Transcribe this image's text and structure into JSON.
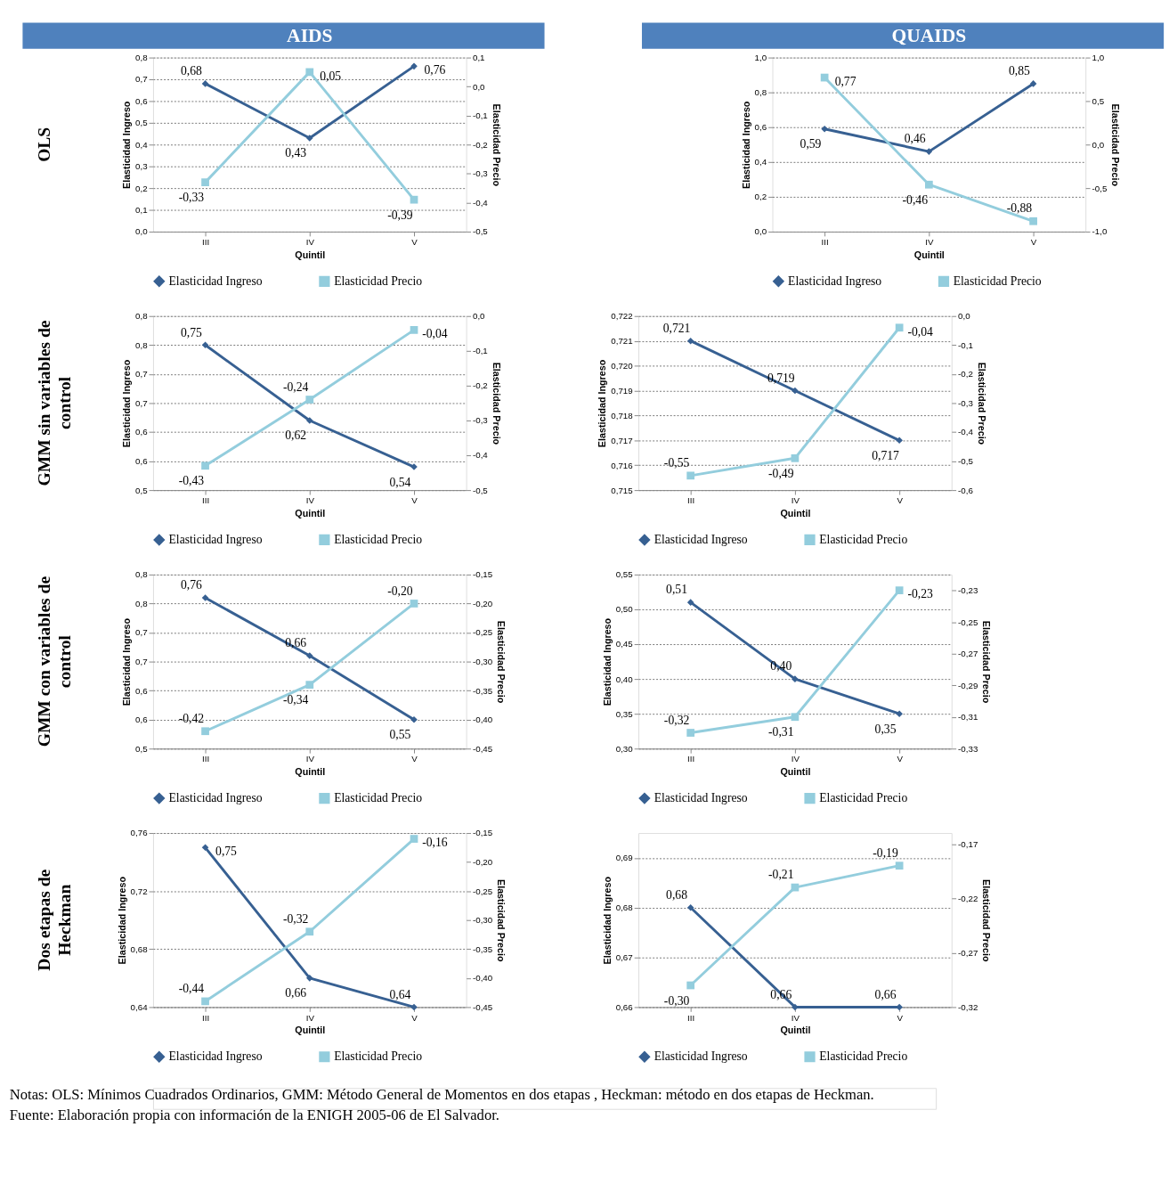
{
  "chart_data": [
    {
      "type": "line",
      "title": "AIDS",
      "annotations": [
        "OLS"
      ],
      "categories": [
        "III",
        "IV",
        "V"
      ],
      "xlabel": "Quintil",
      "ylabel": "Elasticidad Ingreso",
      "y2label": "Elasticidad Precio",
      "grid": "y",
      "legend": "bottom",
      "ylim": [
        0,
        0.8
      ],
      "yticks": [
        {
          "value": 0,
          "label": "0,0"
        },
        {
          "value": 0.1,
          "label": "0,1"
        },
        {
          "value": 0.2,
          "label": "0,2"
        },
        {
          "value": 0.3,
          "label": "0,3"
        },
        {
          "value": 0.4,
          "label": "0,4"
        },
        {
          "value": 0.5,
          "label": "0,5"
        },
        {
          "value": 0.6,
          "label": "0,6"
        },
        {
          "value": 0.7,
          "label": "0,7"
        },
        {
          "value": 0.8,
          "label": "0,8"
        }
      ],
      "y2lim": [
        -0.5,
        0.1
      ],
      "y2ticks": [
        {
          "value": -0.5,
          "label": "-0,5"
        },
        {
          "value": -0.4,
          "label": "-0,4"
        },
        {
          "value": -0.3,
          "label": "-0,3"
        },
        {
          "value": -0.2,
          "label": "-0,2"
        },
        {
          "value": -0.1,
          "label": "-0,1"
        },
        {
          "value": 0,
          "label": "0,0"
        },
        {
          "value": 0.1,
          "label": "0,1"
        }
      ],
      "series": [
        {
          "name": "Elasticidad Ingreso",
          "color": "#376092",
          "marker": "diamond",
          "values": [
            0.68,
            0.43,
            0.76
          ],
          "value_labels": [
            "0,68",
            "0,43",
            "0,76"
          ]
        },
        {
          "name": "Elasticidad Precio",
          "color": "#93cddd",
          "marker": "square",
          "axis": "y2",
          "values": [
            -0.33,
            0.05,
            -0.39
          ],
          "value_labels": [
            "-0,33",
            "0,05",
            "-0,39"
          ]
        }
      ]
    },
    {
      "type": "line",
      "title": "QUAIDS",
      "categories": [
        "III",
        "IV",
        "V"
      ],
      "xlabel": "Quintil",
      "ylabel": "Elasticidad Ingreso",
      "y2label": "Elasticidad Precio",
      "grid": "y",
      "legend": "bottom",
      "ylim": [
        0,
        1
      ],
      "yticks": [
        {
          "value": 0,
          "label": "0,0"
        },
        {
          "value": 0.2,
          "label": "0,2"
        },
        {
          "value": 0.4,
          "label": "0,4"
        },
        {
          "value": 0.6,
          "label": "0,6"
        },
        {
          "value": 0.8,
          "label": "0,8"
        },
        {
          "value": 1,
          "label": "1,0"
        }
      ],
      "y2lim": [
        -1,
        1
      ],
      "y2ticks": [
        {
          "value": -1,
          "label": "-1,0"
        },
        {
          "value": -0.5,
          "label": "-0,5"
        },
        {
          "value": 0,
          "label": "0,0"
        },
        {
          "value": 0.5,
          "label": "0,5"
        },
        {
          "value": 1,
          "label": "1,0"
        }
      ],
      "series": [
        {
          "name": "Elasticidad Ingreso",
          "color": "#376092",
          "marker": "diamond",
          "values": [
            0.59,
            0.46,
            0.85
          ],
          "value_labels": [
            "0,59",
            "0,46",
            "0,85"
          ]
        },
        {
          "name": "Elasticidad Precio",
          "color": "#93cddd",
          "marker": "square",
          "axis": "y2",
          "values": [
            0.77,
            -0.46,
            -0.88
          ],
          "value_labels": [
            "0,77",
            "-0,46",
            "-0,88"
          ]
        }
      ]
    },
    {
      "type": "line",
      "annotations": [
        "GMM sin variables de control"
      ],
      "categories": [
        "III",
        "IV",
        "V"
      ],
      "xlabel": "Quintil",
      "ylabel": "Elasticidad Ingreso",
      "y2label": "Elasticidad Precio",
      "grid": "y",
      "legend": "bottom",
      "ylim": [
        0.5,
        0.8
      ],
      "yticks": [
        {
          "value": 0.5,
          "label": "0,5"
        },
        {
          "value": 0.55,
          "label": "0,6"
        },
        {
          "value": 0.6,
          "label": "0,6"
        },
        {
          "value": 0.65,
          "label": "0,7"
        },
        {
          "value": 0.7,
          "label": "0,7"
        },
        {
          "value": 0.75,
          "label": "0,8"
        },
        {
          "value": 0.8,
          "label": "0,8"
        }
      ],
      "y2lim": [
        -0.5,
        0
      ],
      "y2ticks": [
        {
          "value": -0.5,
          "label": "-0,5"
        },
        {
          "value": -0.4,
          "label": "-0,4"
        },
        {
          "value": -0.3,
          "label": "-0,3"
        },
        {
          "value": -0.2,
          "label": "-0,2"
        },
        {
          "value": -0.1,
          "label": "-0,1"
        },
        {
          "value": 0,
          "label": "0,0"
        }
      ],
      "series": [
        {
          "name": "Elasticidad Ingreso",
          "color": "#376092",
          "marker": "diamond",
          "values": [
            0.75,
            0.62,
            0.54
          ],
          "value_labels": [
            "0,75",
            "0,62",
            "0,54"
          ]
        },
        {
          "name": "Elasticidad Precio",
          "color": "#93cddd",
          "marker": "square",
          "axis": "y2",
          "values": [
            -0.43,
            -0.24,
            -0.04
          ],
          "value_labels": [
            "-0,43",
            "-0,24",
            "-0,04"
          ]
        }
      ]
    },
    {
      "type": "line",
      "categories": [
        "III",
        "IV",
        "V"
      ],
      "xlabel": "Quintil",
      "ylabel": "Elasticidad Ingreso",
      "y2label": "Elasticidad Precio",
      "grid": "y",
      "legend": "bottom",
      "ylim": [
        0.715,
        0.722
      ],
      "yticks": [
        {
          "value": 0.715,
          "label": "0,715"
        },
        {
          "value": 0.716,
          "label": "0,716"
        },
        {
          "value": 0.717,
          "label": "0,717"
        },
        {
          "value": 0.718,
          "label": "0,718"
        },
        {
          "value": 0.719,
          "label": "0,719"
        },
        {
          "value": 0.72,
          "label": "0,720"
        },
        {
          "value": 0.721,
          "label": "0,721"
        },
        {
          "value": 0.722,
          "label": "0,722"
        }
      ],
      "y2lim": [
        -0.6,
        0
      ],
      "y2ticks": [
        {
          "value": -0.6,
          "label": "-0,6"
        },
        {
          "value": -0.5,
          "label": "-0,5"
        },
        {
          "value": -0.4,
          "label": "-0,4"
        },
        {
          "value": -0.3,
          "label": "-0,3"
        },
        {
          "value": -0.2,
          "label": "-0,2"
        },
        {
          "value": -0.1,
          "label": "-0,1"
        },
        {
          "value": 0,
          "label": "0,0"
        }
      ],
      "series": [
        {
          "name": "Elasticidad Ingreso",
          "color": "#376092",
          "marker": "diamond",
          "values": [
            0.721,
            0.719,
            0.717
          ],
          "value_labels": [
            "0,721",
            "0,719",
            "0,717"
          ]
        },
        {
          "name": "Elasticidad Precio",
          "color": "#93cddd",
          "marker": "square",
          "axis": "y2",
          "values": [
            -0.55,
            -0.49,
            -0.04
          ],
          "value_labels": [
            "-0,55",
            "-0,49",
            "-0,04"
          ]
        }
      ]
    },
    {
      "type": "line",
      "annotations": [
        "GMM con variables de control"
      ],
      "categories": [
        "III",
        "IV",
        "V"
      ],
      "xlabel": "Quintil",
      "ylabel": "Elasticidad Ingreso",
      "y2label": "Elasticidad Precio",
      "grid": "y",
      "legend": "bottom",
      "ylim": [
        0.5,
        0.8
      ],
      "yticks": [
        {
          "value": 0.5,
          "label": "0,5"
        },
        {
          "value": 0.55,
          "label": "0,6"
        },
        {
          "value": 0.6,
          "label": "0,6"
        },
        {
          "value": 0.65,
          "label": "0,7"
        },
        {
          "value": 0.7,
          "label": "0,7"
        },
        {
          "value": 0.75,
          "label": "0,8"
        },
        {
          "value": 0.8,
          "label": "0,8"
        }
      ],
      "y2lim": [
        -0.45,
        -0.15
      ],
      "y2ticks": [
        {
          "value": -0.45,
          "label": "-0,45"
        },
        {
          "value": -0.4,
          "label": "-0,40"
        },
        {
          "value": -0.35,
          "label": "-0,35"
        },
        {
          "value": -0.3,
          "label": "-0,30"
        },
        {
          "value": -0.25,
          "label": "-0,25"
        },
        {
          "value": -0.2,
          "label": "-0,20"
        },
        {
          "value": -0.15,
          "label": "-0,15"
        }
      ],
      "series": [
        {
          "name": "Elasticidad Ingreso",
          "color": "#376092",
          "marker": "diamond",
          "values": [
            0.76,
            0.66,
            0.55
          ],
          "value_labels": [
            "0,76",
            "0,66",
            "0,55"
          ]
        },
        {
          "name": "Elasticidad Precio",
          "color": "#93cddd",
          "marker": "square",
          "axis": "y2",
          "values": [
            -0.42,
            -0.34,
            -0.2
          ],
          "value_labels": [
            "-0,42",
            "-0,34",
            "-0,20"
          ]
        }
      ]
    },
    {
      "type": "line",
      "categories": [
        "III",
        "IV",
        "V"
      ],
      "xlabel": "Quintil",
      "ylabel": "Elasticidad Ingreso",
      "y2label": "Elasticidad Precio",
      "grid": "y",
      "legend": "bottom",
      "ylim": [
        0.3,
        0.55
      ],
      "yticks": [
        {
          "value": 0.3,
          "label": "0,30"
        },
        {
          "value": 0.35,
          "label": "0,35"
        },
        {
          "value": 0.4,
          "label": "0,40"
        },
        {
          "value": 0.45,
          "label": "0,45"
        },
        {
          "value": 0.5,
          "label": "0,50"
        },
        {
          "value": 0.55,
          "label": "0,55"
        }
      ],
      "y2lim": [
        -0.33,
        -0.22
      ],
      "y2ticks": [
        {
          "value": -0.33,
          "label": "-0,33"
        },
        {
          "value": -0.31,
          "label": "-0,31"
        },
        {
          "value": -0.29,
          "label": "-0,29"
        },
        {
          "value": -0.27,
          "label": "-0,27"
        },
        {
          "value": -0.25,
          "label": "-0,25"
        },
        {
          "value": -0.23,
          "label": "-0,23"
        }
      ],
      "series": [
        {
          "name": "Elasticidad Ingreso",
          "color": "#376092",
          "marker": "diamond",
          "values": [
            0.51,
            0.4,
            0.35
          ],
          "value_labels": [
            "0,51",
            "0,40",
            "0,35"
          ]
        },
        {
          "name": "Elasticidad Precio",
          "color": "#93cddd",
          "marker": "square",
          "axis": "y2",
          "values": [
            -0.32,
            -0.31,
            -0.23
          ],
          "value_labels": [
            "-0,32",
            "-0,31",
            "-0,23"
          ]
        }
      ]
    },
    {
      "type": "line",
      "annotations": [
        "Dos etapas de Heckman"
      ],
      "categories": [
        "III",
        "IV",
        "V"
      ],
      "xlabel": "Quintil",
      "ylabel": "Elasticidad Ingreso",
      "y2label": "Elasticidad Precio",
      "grid": "y",
      "legend": "bottom",
      "ylim": [
        0.64,
        0.76
      ],
      "yticks": [
        {
          "value": 0.64,
          "label": "0,64"
        },
        {
          "value": 0.68,
          "label": "0,68"
        },
        {
          "value": 0.72,
          "label": "0,72"
        },
        {
          "value": 0.76,
          "label": "0,76"
        }
      ],
      "y2lim": [
        -0.45,
        -0.15
      ],
      "y2ticks": [
        {
          "value": -0.45,
          "label": "-0,45"
        },
        {
          "value": -0.4,
          "label": "-0,40"
        },
        {
          "value": -0.35,
          "label": "-0,35"
        },
        {
          "value": -0.3,
          "label": "-0,30"
        },
        {
          "value": -0.25,
          "label": "-0,25"
        },
        {
          "value": -0.2,
          "label": "-0,20"
        },
        {
          "value": -0.15,
          "label": "-0,15"
        }
      ],
      "series": [
        {
          "name": "Elasticidad Ingreso",
          "color": "#376092",
          "marker": "diamond",
          "values": [
            0.75,
            0.66,
            0.64
          ],
          "value_labels": [
            "0,75",
            "0,66",
            "0,64"
          ]
        },
        {
          "name": "Elasticidad Precio",
          "color": "#93cddd",
          "marker": "square",
          "axis": "y2",
          "values": [
            -0.44,
            -0.32,
            -0.16
          ],
          "value_labels": [
            "-0,44",
            "-0,32",
            "-0,16"
          ]
        }
      ]
    },
    {
      "type": "line",
      "categories": [
        "III",
        "IV",
        "V"
      ],
      "xlabel": "Quintil",
      "ylabel": "Elasticidad Ingreso",
      "y2label": "Elasticidad Precio",
      "grid": "y",
      "legend": "bottom",
      "ylim": [
        0.66,
        0.695
      ],
      "yticks": [
        {
          "value": 0.66,
          "label": "0,66"
        },
        {
          "value": 0.67,
          "label": "0,67"
        },
        {
          "value": 0.68,
          "label": "0,68"
        },
        {
          "value": 0.69,
          "label": "0,69"
        }
      ],
      "y2lim": [
        -0.32,
        -0.16
      ],
      "y2ticks": [
        {
          "value": -0.32,
          "label": "-0,32"
        },
        {
          "value": -0.27,
          "label": "-0,27"
        },
        {
          "value": -0.22,
          "label": "-0,22"
        },
        {
          "value": -0.17,
          "label": "-0,17"
        }
      ],
      "series": [
        {
          "name": "Elasticidad Ingreso",
          "color": "#376092",
          "marker": "diamond",
          "values": [
            0.68,
            0.66,
            0.66
          ],
          "value_labels": [
            "0,68",
            "0,66",
            "0,66"
          ]
        },
        {
          "name": "Elasticidad Precio",
          "color": "#93cddd",
          "marker": "square",
          "axis": "y2",
          "values": [
            -0.3,
            -0.21,
            -0.19
          ],
          "value_labels": [
            "-0,30",
            "-0,21",
            "-0,19"
          ]
        }
      ]
    },
    {
      "type": "other",
      "annotations": [
        "Notas: OLS: Mínimos Cuadrados Ordinarios, GMM: Método General de Momentos en dos etapas , Heckman: método en dos etapas de Heckman.",
        "Fuente: Elaboración propia con información de la ENIGH 2005-06 de El Salvador."
      ]
    }
  ]
}
